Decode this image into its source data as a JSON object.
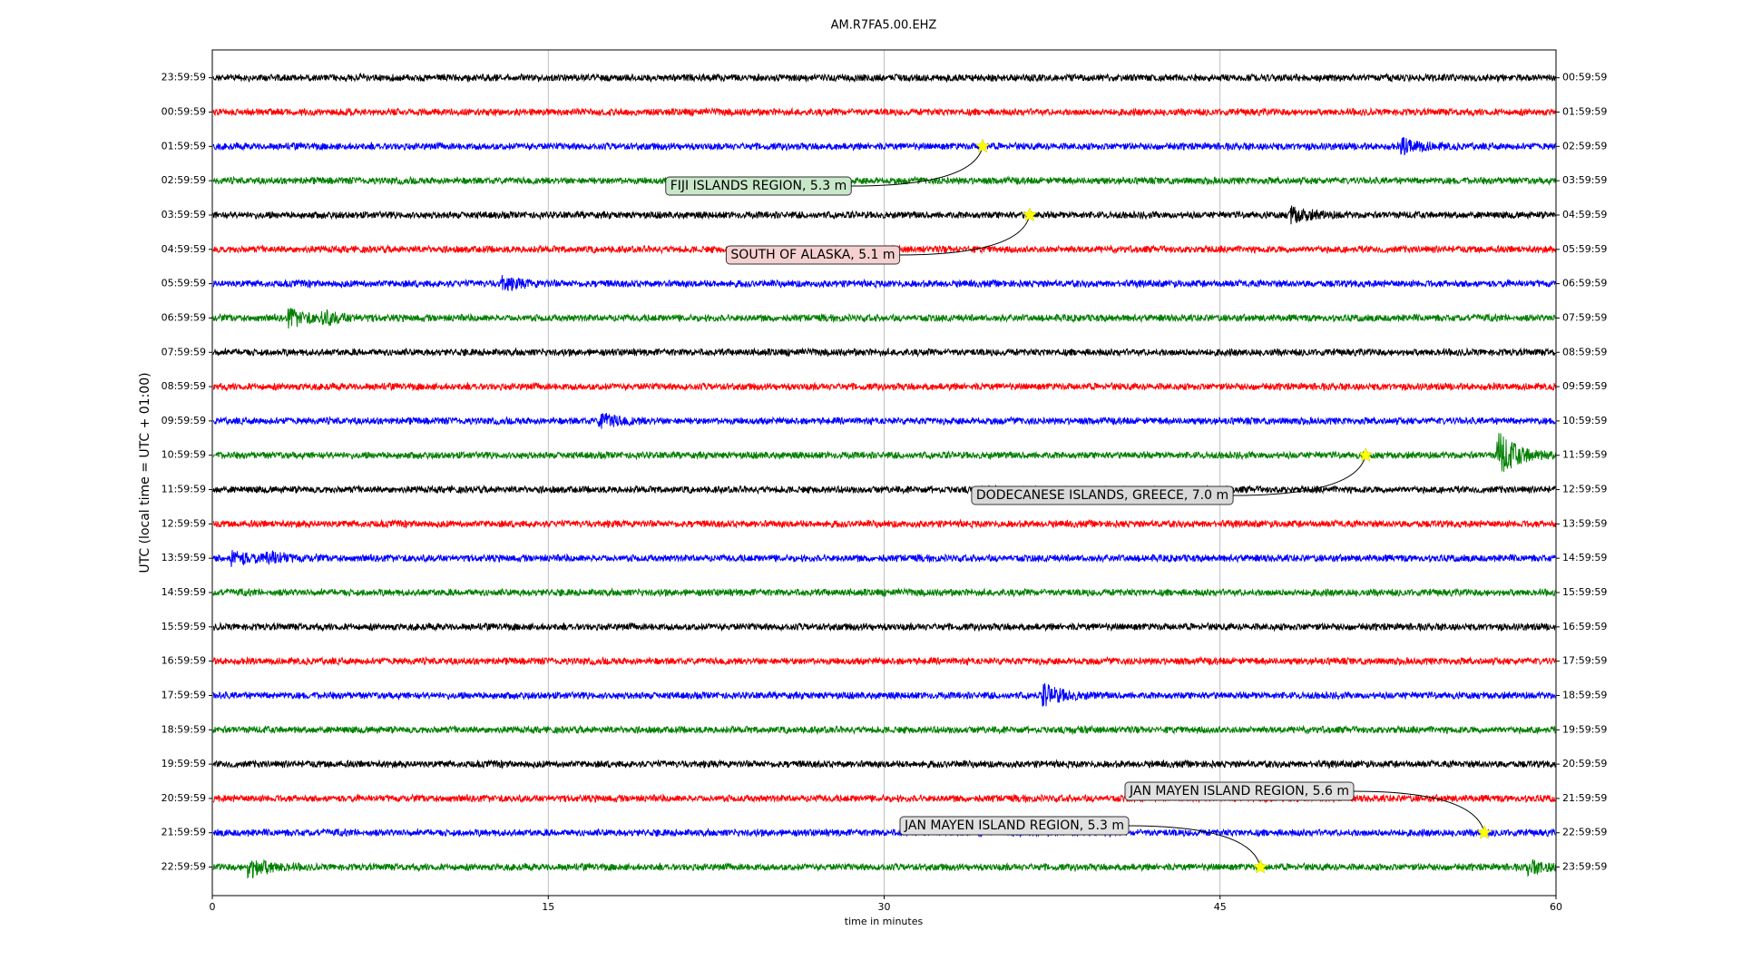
{
  "chart_data": {
    "type": "dayplot",
    "title": "AM.R7FA5.00.EHZ",
    "x_label": "time in minutes",
    "y_label": "UTC (local time = UTC + 01:00)",
    "xlim": [
      0,
      60
    ],
    "xticks": [
      0,
      15,
      30,
      45,
      60
    ],
    "grid": true,
    "trace_colors": [
      "black",
      "red",
      "blue",
      "green"
    ],
    "left_labels": [
      "23:59:59",
      "00:59:59",
      "01:59:59",
      "02:59:59",
      "03:59:59",
      "04:59:59",
      "05:59:59",
      "06:59:59",
      "07:59:59",
      "08:59:59",
      "09:59:59",
      "10:59:59",
      "11:59:59",
      "12:59:59",
      "13:59:59",
      "14:59:59",
      "15:59:59",
      "16:59:59",
      "17:59:59",
      "18:59:59",
      "19:59:59",
      "20:59:59",
      "21:59:59",
      "22:59:59"
    ],
    "right_labels": [
      "00:59:59",
      "01:59:59",
      "02:59:59",
      "03:59:59",
      "04:59:59",
      "05:59:59",
      "06:59:59",
      "07:59:59",
      "08:59:59",
      "09:59:59",
      "10:59:59",
      "11:59:59",
      "12:59:59",
      "13:59:59",
      "14:59:59",
      "15:59:59",
      "16:59:59",
      "17:59:59",
      "18:59:59",
      "19:59:59",
      "20:59:59",
      "21:59:59",
      "22:59:59",
      "23:59:59"
    ],
    "events": [
      {
        "text": "FIJI ISLANDS REGION, 5.3 m",
        "minute": 34.4,
        "row": 2,
        "color": "#c8e6c8"
      },
      {
        "text": "SOUTH OF ALASKA, 5.1 m",
        "minute": 36.5,
        "row": 4,
        "color": "#f4d0d0"
      },
      {
        "text": "DODECANESE ISLANDS, GREECE, 7.0 m",
        "minute": 51.5,
        "row": 11,
        "color": "#d8d8d8"
      },
      {
        "text": "JAN MAYEN ISLAND REGION, 5.6 m",
        "minute": 56.8,
        "row": 22,
        "color": "#e0e0e0"
      },
      {
        "text": "JAN MAYEN ISLAND REGION, 5.3 m",
        "minute": 46.8,
        "row": 23,
        "color": "#e0e0e0"
      }
    ]
  }
}
